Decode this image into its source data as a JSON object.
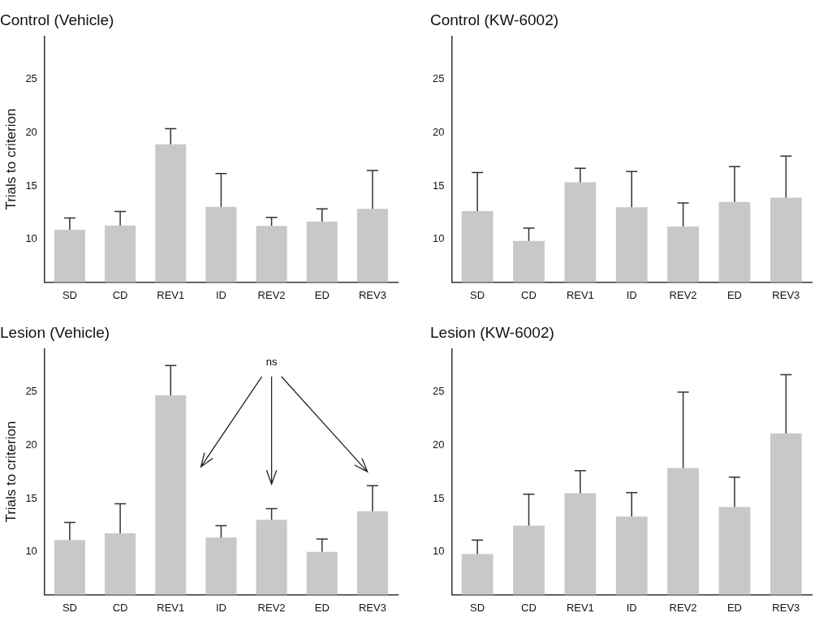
{
  "chart_data": [
    {
      "type": "bar",
      "title": "Control (Vehicle)",
      "ylabel": "Trials to criterion",
      "categories": [
        "SD",
        "CD",
        "REV1",
        "ID",
        "REV2",
        "ED",
        "REV3"
      ],
      "values": [
        10.9,
        11.3,
        18.9,
        13.05,
        11.25,
        11.65,
        12.85
      ],
      "errors": [
        [
          10.9,
          12.0
        ],
        [
          11.3,
          12.6
        ],
        [
          18.9,
          20.35
        ],
        [
          13.05,
          16.15
        ],
        [
          11.25,
          12.05
        ],
        [
          11.65,
          12.85
        ],
        [
          12.85,
          16.45
        ]
      ],
      "color": "#c8c8c8",
      "ylim": [
        6,
        29
      ],
      "yticks": [
        10,
        15,
        20,
        25
      ],
      "grid": false,
      "legend": false
    },
    {
      "type": "bar",
      "title": "Control (KW-6002)",
      "categories": [
        "SD",
        "CD",
        "REV1",
        "ID",
        "REV2",
        "ED",
        "REV3"
      ],
      "values": [
        12.65,
        9.85,
        15.35,
        13.0,
        11.2,
        13.5,
        13.9
      ],
      "errors": [
        [
          12.65,
          16.25
        ],
        [
          9.85,
          11.05
        ],
        [
          15.35,
          16.65
        ],
        [
          13.0,
          16.35
        ],
        [
          11.2,
          13.4
        ],
        [
          13.5,
          16.8
        ],
        [
          13.9,
          17.8
        ]
      ],
      "color": "#c8c8c8",
      "ylim": [
        6,
        29
      ],
      "yticks": [
        10,
        15,
        20,
        25
      ],
      "grid": false,
      "legend": false
    },
    {
      "type": "bar",
      "title": "Lesion (Vehicle)",
      "ylabel": "Trials to criterion",
      "categories": [
        "SD",
        "CD",
        "REV1",
        "ID",
        "REV2",
        "ED",
        "REV3"
      ],
      "values": [
        11.1,
        11.75,
        24.65,
        11.35,
        13.0,
        10.0,
        13.8
      ],
      "errors": [
        [
          11.1,
          12.75
        ],
        [
          11.75,
          14.5
        ],
        [
          24.65,
          27.45
        ],
        [
          11.35,
          12.45
        ],
        [
          13.0,
          14.05
        ],
        [
          10.0,
          11.2
        ],
        [
          13.8,
          16.2
        ]
      ],
      "color": "#c8c8c8",
      "ylim": [
        6,
        29
      ],
      "yticks": [
        10,
        15,
        20,
        25
      ],
      "grid": false,
      "legend": false,
      "annotations": [
        "ns"
      ]
    },
    {
      "type": "bar",
      "title": "Lesion (KW-6002)",
      "categories": [
        "SD",
        "CD",
        "REV1",
        "ID",
        "REV2",
        "ED",
        "REV3"
      ],
      "values": [
        9.8,
        12.45,
        15.5,
        13.3,
        17.85,
        14.2,
        21.1
      ],
      "errors": [
        [
          9.8,
          11.1
        ],
        [
          12.45,
          15.4
        ],
        [
          15.5,
          17.6
        ],
        [
          13.3,
          15.55
        ],
        [
          17.85,
          24.95
        ],
        [
          14.2,
          17.0
        ],
        [
          21.1,
          26.6
        ]
      ],
      "color": "#c8c8c8",
      "ylim": [
        6,
        29
      ],
      "yticks": [
        10,
        15,
        20,
        25
      ],
      "grid": false,
      "legend": false
    }
  ]
}
